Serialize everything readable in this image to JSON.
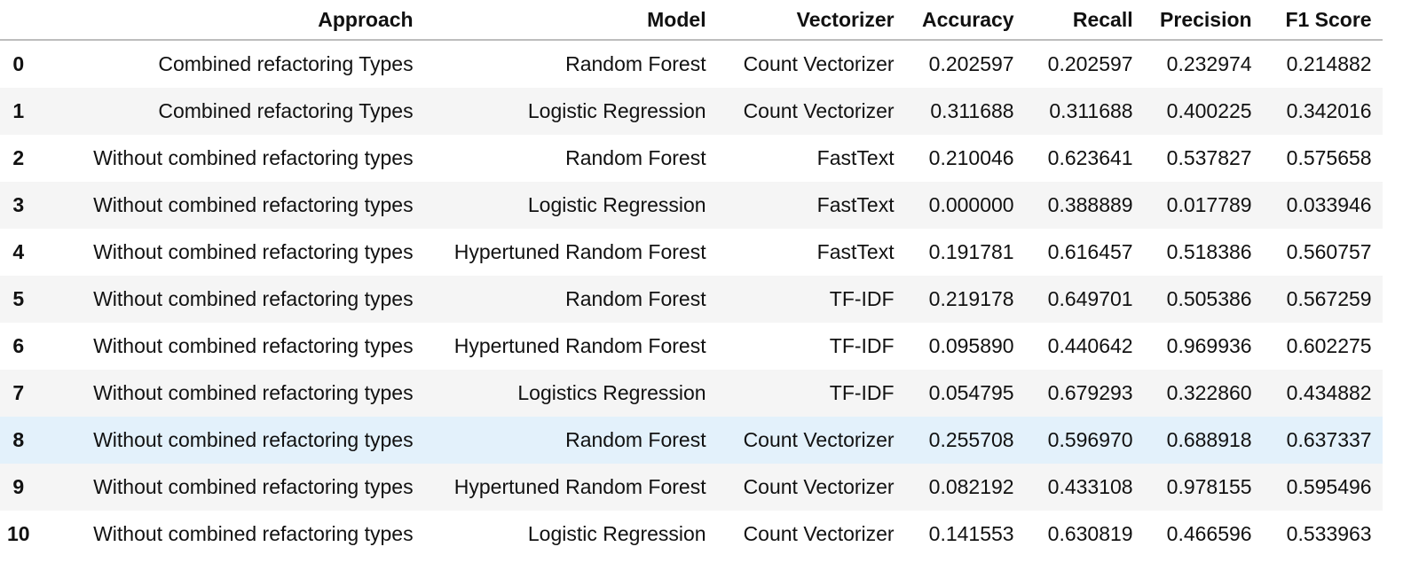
{
  "table": {
    "columns": {
      "index": "",
      "approach": "Approach",
      "model": "Model",
      "vectorizer": "Vectorizer",
      "accuracy": "Accuracy",
      "recall": "Recall",
      "precision": "Precision",
      "f1": "F1 Score"
    },
    "rows": [
      {
        "index": "0",
        "approach": "Combined refactoring Types",
        "model": "Random Forest",
        "vectorizer": "Count Vectorizer",
        "accuracy": "0.202597",
        "recall": "0.202597",
        "precision": "0.232974",
        "f1": "0.214882"
      },
      {
        "index": "1",
        "approach": "Combined refactoring Types",
        "model": "Logistic Regression",
        "vectorizer": "Count Vectorizer",
        "accuracy": "0.311688",
        "recall": "0.311688",
        "precision": "0.400225",
        "f1": "0.342016"
      },
      {
        "index": "2",
        "approach": "Without combined refactoring types",
        "model": "Random Forest",
        "vectorizer": "FastText",
        "accuracy": "0.210046",
        "recall": "0.623641",
        "precision": "0.537827",
        "f1": "0.575658"
      },
      {
        "index": "3",
        "approach": "Without combined refactoring types",
        "model": "Logistic Regression",
        "vectorizer": "FastText",
        "accuracy": "0.000000",
        "recall": "0.388889",
        "precision": "0.017789",
        "f1": "0.033946"
      },
      {
        "index": "4",
        "approach": "Without combined refactoring types",
        "model": "Hypertuned Random Forest",
        "vectorizer": "FastText",
        "accuracy": "0.191781",
        "recall": "0.616457",
        "precision": "0.518386",
        "f1": "0.560757"
      },
      {
        "index": "5",
        "approach": "Without combined refactoring types",
        "model": "Random Forest",
        "vectorizer": "TF-IDF",
        "accuracy": "0.219178",
        "recall": "0.649701",
        "precision": "0.505386",
        "f1": "0.567259"
      },
      {
        "index": "6",
        "approach": "Without combined refactoring types",
        "model": "Hypertuned Random Forest",
        "vectorizer": "TF-IDF",
        "accuracy": "0.095890",
        "recall": "0.440642",
        "precision": "0.969936",
        "f1": "0.602275"
      },
      {
        "index": "7",
        "approach": "Without combined refactoring types",
        "model": "Logistics Regression",
        "vectorizer": "TF-IDF",
        "accuracy": "0.054795",
        "recall": "0.679293",
        "precision": "0.322860",
        "f1": "0.434882"
      },
      {
        "index": "8",
        "approach": "Without combined refactoring types",
        "model": "Random Forest",
        "vectorizer": "Count Vectorizer",
        "accuracy": "0.255708",
        "recall": "0.596970",
        "precision": "0.688918",
        "f1": "0.637337"
      },
      {
        "index": "9",
        "approach": "Without combined refactoring types",
        "model": "Hypertuned Random Forest",
        "vectorizer": "Count Vectorizer",
        "accuracy": "0.082192",
        "recall": "0.433108",
        "precision": "0.978155",
        "f1": "0.595496"
      },
      {
        "index": "10",
        "approach": "Without combined refactoring types",
        "model": "Logistic Regression",
        "vectorizer": "Count Vectorizer",
        "accuracy": "0.141553",
        "recall": "0.630819",
        "precision": "0.466596",
        "f1": "0.533963"
      }
    ],
    "highlighted_row": "8",
    "colors": {
      "header_rule": "#bdbdbd",
      "stripe": "#f5f5f5",
      "hover": "#e3f1fb",
      "text": "#111111"
    }
  }
}
